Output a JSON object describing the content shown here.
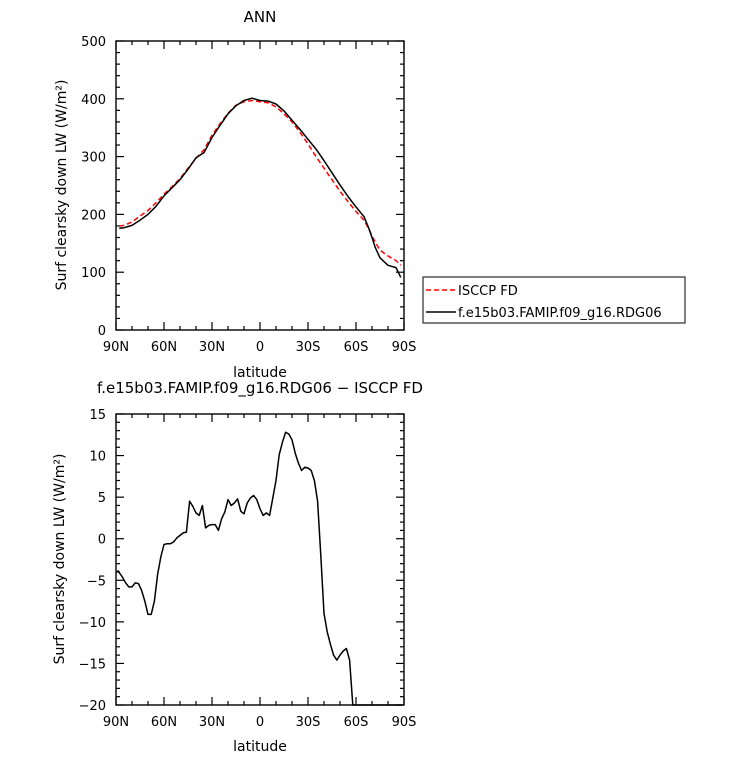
{
  "chart_data": [
    {
      "type": "line",
      "title": "ANN",
      "xlabel": "latitude",
      "ylabel": "Surf clearsky down LW (W/m²)",
      "xlim": [
        -90,
        90
      ],
      "ylim": [
        0,
        500
      ],
      "x_ticks": [
        -90,
        -60,
        -30,
        0,
        30,
        60,
        90
      ],
      "x_tick_labels": [
        "90N",
        "60N",
        "30N",
        "0",
        "30S",
        "60S",
        "90S"
      ],
      "y_ticks": [
        0,
        100,
        200,
        300,
        400,
        500
      ],
      "y_tick_labels": [
        "0",
        "100",
        "200",
        "300",
        "400",
        "500"
      ],
      "legend_position": "right, outside plot",
      "series": [
        {
          "name": "ISCCP FD",
          "color": "#ff0000",
          "style": "dashed",
          "x": [
            -88,
            -85,
            -80,
            -75,
            -70,
            -65,
            -60,
            -55,
            -50,
            -45,
            -40,
            -35,
            -30,
            -25,
            -20,
            -15,
            -10,
            -5,
            0,
            5,
            10,
            15,
            20,
            25,
            30,
            35,
            40,
            45,
            50,
            55,
            60,
            65,
            68,
            70,
            72,
            75,
            80,
            85,
            88
          ],
          "values": [
            180,
            181,
            187,
            197,
            207,
            220,
            235,
            248,
            262,
            280,
            297,
            312,
            337,
            357,
            375,
            389,
            395,
            397,
            395,
            393,
            386,
            374,
            360,
            342,
            322,
            300,
            280,
            260,
            240,
            222,
            205,
            190,
            175,
            163,
            152,
            138,
            128,
            120,
            112
          ]
        },
        {
          "name": "f.e15b03.FAMIP.f09_g16.RDG06",
          "color": "#000000",
          "style": "solid",
          "x": [
            -88,
            -85,
            -80,
            -75,
            -70,
            -65,
            -60,
            -55,
            -50,
            -45,
            -40,
            -35,
            -30,
            -25,
            -20,
            -15,
            -10,
            -5,
            0,
            5,
            10,
            15,
            20,
            25,
            30,
            35,
            40,
            45,
            50,
            55,
            60,
            65,
            68,
            70,
            72,
            75,
            80,
            85,
            88
          ],
          "values": [
            176,
            177,
            181,
            190,
            200,
            214,
            232,
            246,
            260,
            278,
            298,
            307,
            333,
            354,
            374,
            388,
            397,
            401,
            397,
            396,
            391,
            379,
            363,
            347,
            330,
            313,
            293,
            272,
            251,
            231,
            213,
            196,
            176,
            160,
            143,
            125,
            112,
            108,
            91
          ]
        }
      ]
    },
    {
      "type": "line",
      "title": "f.e15b03.FAMIP.f09_g16.RDG06 − ISCCP FD",
      "xlabel": "latitude",
      "ylabel": "Surf clearsky down LW (W/m²)",
      "xlim": [
        -90,
        90
      ],
      "ylim": [
        -20,
        15
      ],
      "x_ticks": [
        -90,
        -60,
        -30,
        0,
        30,
        60,
        90
      ],
      "x_tick_labels": [
        "90N",
        "60N",
        "30N",
        "0",
        "30S",
        "60S",
        "90S"
      ],
      "y_ticks": [
        -20,
        -15,
        -10,
        -5,
        0,
        5,
        10,
        15
      ],
      "y_tick_labels": [
        "−20",
        "−15",
        "−10",
        "−5",
        "0",
        "5",
        "10",
        "15"
      ],
      "series": [
        {
          "color": "#000000",
          "style": "solid",
          "x": [
            -89,
            -86,
            -84,
            -82,
            -80,
            -78,
            -76,
            -74,
            -72,
            -70,
            -68,
            -66,
            -64,
            -62,
            -60,
            -58,
            -56,
            -54,
            -52,
            -50,
            -48,
            -46,
            -44,
            -42,
            -40,
            -38,
            -36,
            -34,
            -32,
            -30,
            -28,
            -26,
            -24,
            -22,
            -20,
            -18,
            -16,
            -14,
            -12,
            -10,
            -8,
            -6,
            -4,
            -2,
            0,
            2,
            4,
            6,
            8,
            10,
            12,
            14,
            16,
            18,
            20,
            22,
            24,
            26,
            28,
            30,
            32,
            34,
            36,
            38,
            40,
            42,
            44,
            46,
            48,
            50,
            52,
            54,
            56,
            58,
            60,
            62,
            64,
            66,
            68,
            70,
            72,
            74,
            76,
            78,
            80,
            82,
            84,
            86,
            88,
            89
          ],
          "values": [
            -3.8,
            -4.6,
            -5.3,
            -5.8,
            -5.8,
            -5.3,
            -5.4,
            -6.2,
            -7.5,
            -9.1,
            -9.1,
            -7.5,
            -4.3,
            -2.2,
            -0.7,
            -0.6,
            -0.6,
            -0.4,
            0.1,
            0.4,
            0.7,
            0.8,
            4.5,
            3.9,
            3.1,
            2.8,
            4.0,
            1.3,
            1.6,
            1.7,
            1.7,
            1.0,
            2.4,
            3.2,
            4.7,
            4.0,
            4.3,
            4.8,
            3.3,
            3.0,
            4.3,
            4.9,
            5.2,
            4.7,
            3.6,
            2.8,
            3.1,
            2.8,
            4.9,
            7.0,
            10.1,
            11.6,
            12.8,
            12.6,
            11.9,
            10.3,
            9.1,
            8.2,
            8.6,
            8.5,
            8.2,
            7.0,
            4.5,
            -2.0,
            -9.0,
            -11.2,
            -12.7,
            -14.0,
            -14.6,
            -14.0,
            -13.5,
            -13.2,
            -14.6,
            -20.0,
            -20.0,
            -20.0,
            -20.0,
            -20.0,
            -20.0,
            -20.0,
            -20.0,
            -20.0,
            -20.0,
            -20.0,
            -20.0,
            -20.0,
            -20.0,
            -20.0,
            -20.0,
            -20.0
          ]
        }
      ]
    }
  ]
}
